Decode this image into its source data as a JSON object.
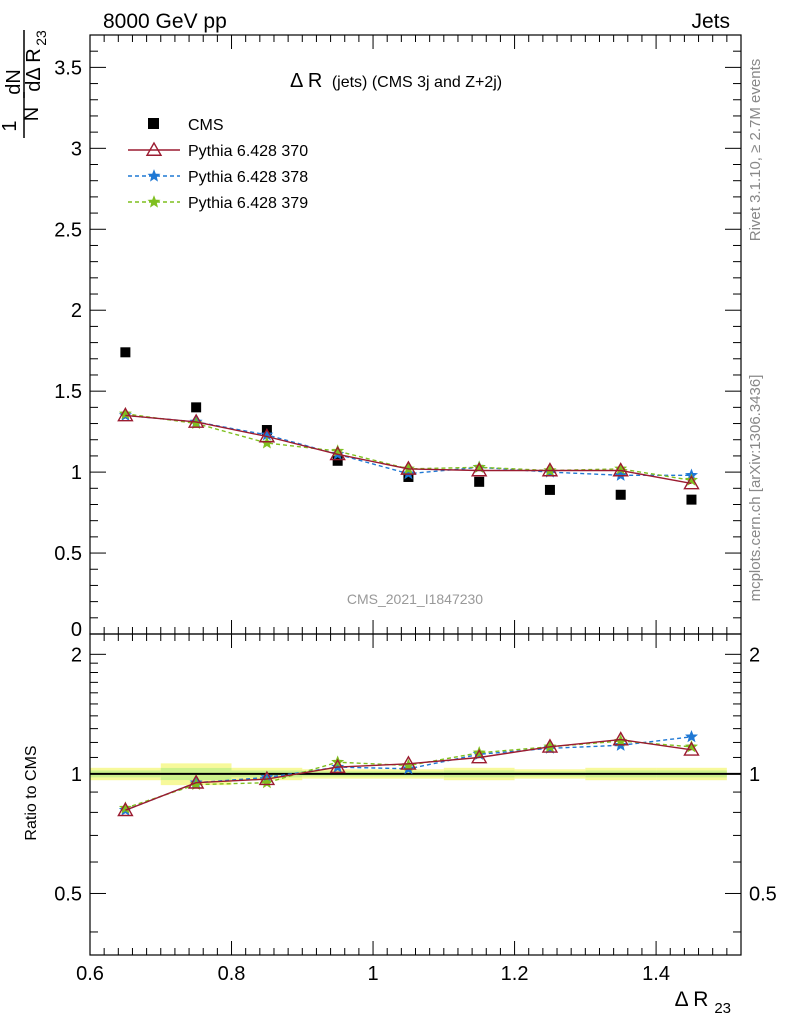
{
  "header": {
    "left": "8000 GeV pp",
    "right": "Jets"
  },
  "side_labels": {
    "rivet": "Rivet 3.1.10, ≥ 2.7M events",
    "mcplots": "mcplots.cern.ch [arXiv:1306.3436]"
  },
  "chart_data": {
    "type": "scatter",
    "title_main": "Δ R",
    "title_paren": "(jets) (CMS 3j and Z+2j)",
    "analysis_label": "CMS_2021_I1847230",
    "xlabel_main": "Δ R",
    "xlabel_sub": "23",
    "ylabel": {
      "num": "1",
      "den": "N",
      "dnum": "dN",
      "dden": "dΔ R",
      "dden_sub": "23"
    },
    "ratio_ylabel": "Ratio to CMS",
    "xlim": [
      0.6,
      1.52
    ],
    "ylim_main": [
      0,
      3.7
    ],
    "ylim_ratio": [
      0.35,
      2.25
    ],
    "x_ticks": [
      {
        "v": 0.6,
        "label": "0.6"
      },
      {
        "v": 0.8,
        "label": "0.8"
      },
      {
        "v": 1.0,
        "label": "1"
      },
      {
        "v": 1.2,
        "label": "1.2"
      },
      {
        "v": 1.4,
        "label": "1.4"
      }
    ],
    "y_ticks_main": [
      {
        "v": 0,
        "label": "0"
      },
      {
        "v": 0.5,
        "label": "0.5"
      },
      {
        "v": 1,
        "label": "1"
      },
      {
        "v": 1.5,
        "label": "1.5"
      },
      {
        "v": 2,
        "label": "2"
      },
      {
        "v": 2.5,
        "label": "2.5"
      },
      {
        "v": 3,
        "label": "3"
      },
      {
        "v": 3.5,
        "label": "3.5"
      }
    ],
    "y_ticks_ratio": [
      {
        "v": 0.5,
        "label": "0.5"
      },
      {
        "v": 1,
        "label": "1"
      },
      {
        "v": 2,
        "label": "2"
      }
    ],
    "x": [
      0.65,
      0.75,
      0.85,
      0.95,
      1.05,
      1.15,
      1.25,
      1.35,
      1.45
    ],
    "bin_edges": [
      0.6,
      0.7,
      0.8,
      0.9,
      1.0,
      1.1,
      1.2,
      1.3,
      1.4,
      1.5
    ],
    "data": {
      "name": "CMS",
      "values": [
        1.74,
        1.4,
        1.26,
        1.07,
        0.97,
        0.94,
        0.89,
        0.86,
        0.83
      ],
      "band_ratio": [
        0.02,
        0.035,
        0.02,
        0.015,
        0.015,
        0.02,
        0.015,
        0.02,
        0.02
      ],
      "color": "#000000"
    },
    "series": [
      {
        "name": "Pythia 6.428 370",
        "values": [
          1.35,
          1.31,
          1.22,
          1.11,
          1.02,
          1.01,
          1.01,
          1.01,
          0.93
        ],
        "ratio": [
          0.81,
          0.95,
          0.97,
          1.04,
          1.06,
          1.1,
          1.17,
          1.22,
          1.15
        ],
        "color": "#9b1b30",
        "dash": "",
        "marker": "triangle"
      },
      {
        "name": "Pythia 6.428 378",
        "values": [
          1.35,
          1.31,
          1.23,
          1.11,
          0.99,
          1.03,
          1.0,
          0.98,
          0.98
        ],
        "ratio": [
          0.81,
          0.95,
          0.98,
          1.04,
          1.03,
          1.12,
          1.16,
          1.18,
          1.24
        ],
        "color": "#1f78d4",
        "dash": "4,3",
        "marker": "star"
      },
      {
        "name": "Pythia 6.428 379",
        "values": [
          1.36,
          1.3,
          1.18,
          1.13,
          1.02,
          1.03,
          1.01,
          1.02,
          0.95
        ],
        "ratio": [
          0.82,
          0.94,
          0.95,
          1.07,
          1.05,
          1.13,
          1.17,
          1.21,
          1.17
        ],
        "color": "#7fbf1f",
        "dash": "4,3",
        "marker": "star"
      }
    ]
  }
}
